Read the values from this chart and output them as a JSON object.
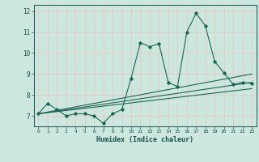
{
  "xlabel": "Humidex (Indice chaleur)",
  "bg_color": "#cce8de",
  "grid_color": "#e8c8c8",
  "line_color": "#1a6655",
  "xlim": [
    -0.5,
    23.5
  ],
  "ylim": [
    6.5,
    12.3
  ],
  "x_ticks": [
    0,
    1,
    2,
    3,
    4,
    5,
    6,
    7,
    8,
    9,
    10,
    11,
    12,
    13,
    14,
    15,
    16,
    17,
    18,
    19,
    20,
    21,
    22,
    23
  ],
  "y_ticks": [
    7,
    8,
    9,
    10,
    11,
    12
  ],
  "main_x": [
    0,
    1,
    2,
    3,
    4,
    5,
    6,
    7,
    8,
    9,
    10,
    11,
    12,
    13,
    14,
    15,
    16,
    17,
    18,
    19,
    20,
    21,
    22,
    23
  ],
  "main_y": [
    7.1,
    7.6,
    7.3,
    7.0,
    7.1,
    7.1,
    7.0,
    6.65,
    7.1,
    7.3,
    8.8,
    10.5,
    10.3,
    10.45,
    8.6,
    8.4,
    11.0,
    11.9,
    11.3,
    9.6,
    9.05,
    8.5,
    8.6,
    8.55
  ],
  "trend1_x": [
    0,
    23
  ],
  "trend1_y": [
    7.1,
    8.3
  ],
  "trend2_x": [
    0,
    23
  ],
  "trend2_y": [
    7.1,
    8.6
  ],
  "trend3_x": [
    0,
    23
  ],
  "trend3_y": [
    7.1,
    9.0
  ]
}
